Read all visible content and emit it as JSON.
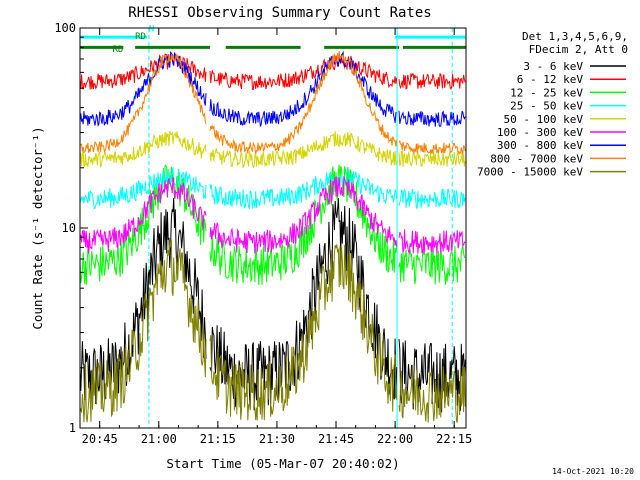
{
  "chart_data": {
    "type": "line",
    "title": "RHESSI Observing Summary Count Rates",
    "xlabel": "Start Time (05-Mar-07 20:40:02)",
    "ylabel": "Count Rate (s⁻¹ detector⁻¹)",
    "x_ticks": [
      "20:45",
      "21:00",
      "21:15",
      "21:30",
      "21:45",
      "22:00",
      "22:15"
    ],
    "x_tick_minutes": [
      5,
      20,
      35,
      50,
      65,
      80,
      95
    ],
    "xlim_minutes": [
      0,
      98
    ],
    "y_ticks": [
      "100",
      "10",
      "1"
    ],
    "y_tick_values": [
      100,
      10,
      1
    ],
    "ylim": [
      1,
      100
    ],
    "y_scale": "log",
    "legend_header": [
      "Det 1,3,4,5,6,9,",
      "FDecim 2, Att 0"
    ],
    "legend_position": "right",
    "timestamp": "14-Oct-2021 10:20",
    "flags": [
      {
        "label": "N",
        "color": "#00ffff"
      },
      {
        "label": "RD",
        "color": "#008000"
      },
      {
        "label": "RD",
        "color": "#008000"
      }
    ],
    "flag_bars": [
      {
        "name": "night",
        "color": "#00ffff",
        "y": 90,
        "segments": [
          [
            0,
            17
          ],
          [
            80,
            98
          ]
        ]
      },
      {
        "name": "saa",
        "color": "#008000",
        "y": 80,
        "segments": [
          [
            0,
            11
          ],
          [
            14,
            33
          ],
          [
            37,
            56
          ],
          [
            62,
            81
          ],
          [
            82,
            98
          ]
        ]
      }
    ],
    "cyan_vlines": [
      0,
      80.5
    ],
    "cyan_dashed_vlines": [
      17.5,
      94.5
    ],
    "series": [
      {
        "name": "3 - 6 keV",
        "color": "#000000",
        "base": 1.8,
        "peak": 9.5,
        "noise": 0.18
      },
      {
        "name": "6 - 12 keV",
        "color": "#ff0000",
        "base": 54,
        "peak": 68,
        "noise": 0.04
      },
      {
        "name": "12 - 25 keV",
        "color": "#00ff00",
        "base": 6.5,
        "peak": 17,
        "noise": 0.1
      },
      {
        "name": "25 - 50 keV",
        "color": "#00ffff",
        "base": 14,
        "peak": 18,
        "noise": 0.05
      },
      {
        "name": "50 - 100 keV",
        "color": "#d4d400",
        "base": 22,
        "peak": 28,
        "noise": 0.04
      },
      {
        "name": "100 - 300 keV",
        "color": "#ff00ff",
        "base": 8.5,
        "peak": 16,
        "noise": 0.06
      },
      {
        "name": "300 - 800 keV",
        "color": "#0000ff",
        "base": 35,
        "peak": 70,
        "noise": 0.04
      },
      {
        "name": "800 - 7000 keV",
        "color": "#ff8000",
        "base": 25,
        "peak": 72,
        "noise": 0.03
      },
      {
        "name": "7000 - 15000 keV",
        "color": "#808000",
        "base": 1.5,
        "peak": 6.5,
        "noise": 0.15
      }
    ],
    "grid": false
  }
}
